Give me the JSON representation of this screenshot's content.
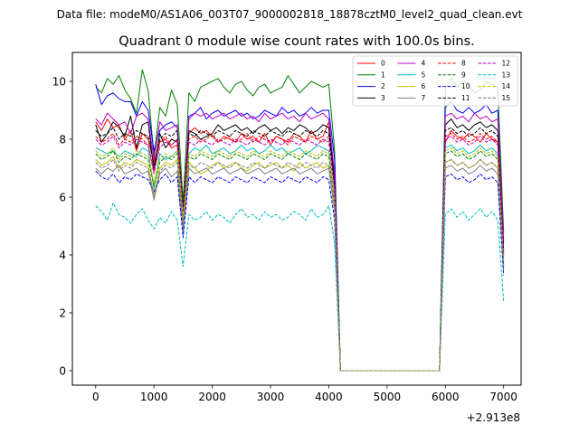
{
  "suptitle": "Data file: modeM0/AS1A06_003T07_9000002818_18878cztM0_level2_quad_clean.evt",
  "chart_data": {
    "type": "line",
    "title": "Quadrant 0 module wise count rates with 100.0s bins.",
    "xlabel": "",
    "ylabel": "",
    "x_offset_label": "+2.913e8",
    "xlim": [
      -400,
      7300
    ],
    "ylim": [
      -0.5,
      11
    ],
    "xticks": [
      0,
      1000,
      2000,
      3000,
      4000,
      5000,
      6000,
      7000
    ],
    "yticks": [
      0,
      2,
      4,
      6,
      8,
      10
    ],
    "grid": false,
    "legend_position": "top-right",
    "legend_columns": 4,
    "x": [
      0,
      100,
      200,
      300,
      400,
      500,
      600,
      700,
      800,
      900,
      1000,
      1100,
      1200,
      1300,
      1400,
      1500,
      1600,
      1700,
      1800,
      1900,
      2000,
      2100,
      2200,
      2300,
      2400,
      2500,
      2600,
      2700,
      2800,
      2900,
      3000,
      3100,
      3200,
      3300,
      3400,
      3500,
      3600,
      3700,
      3800,
      3900,
      4000,
      4100,
      4200,
      4300,
      4400,
      4500,
      4600,
      4700,
      4800,
      4900,
      5000,
      5100,
      5200,
      5300,
      5400,
      5500,
      5600,
      5700,
      5800,
      5900,
      6000,
      6100,
      6200,
      6300,
      6400,
      6500,
      6600,
      6700,
      6800,
      6900,
      7000
    ],
    "series": [
      {
        "name": "0",
        "color": "#ff0000",
        "dash": "solid",
        "values": [
          8.6,
          8.3,
          8.7,
          8.4,
          8.5,
          8.0,
          8.3,
          7.6,
          8.2,
          8.0,
          7.2,
          7.9,
          8.0,
          7.7,
          7.8,
          5.6,
          8.2,
          8.4,
          8.2,
          8.3,
          8.1,
          7.9,
          8.1,
          8.0,
          7.9,
          8.2,
          8.0,
          8.1,
          7.9,
          8.2,
          7.8,
          8.1,
          8.0,
          7.9,
          8.2,
          8.1,
          7.9,
          8.3,
          8.0,
          8.1,
          8.6,
          6.3,
          0,
          0,
          0,
          0,
          0,
          0,
          0,
          0,
          0,
          0,
          0,
          0,
          0,
          0,
          0,
          0,
          0,
          0,
          7.9,
          8.3,
          8.1,
          8.0,
          8.2,
          8.1,
          7.9,
          8.2,
          8.0,
          7.9,
          4.1
        ]
      },
      {
        "name": "1",
        "color": "#008000",
        "dash": "solid",
        "values": [
          9.8,
          9.6,
          10.1,
          9.9,
          10.2,
          9.7,
          9.4,
          8.9,
          10.4,
          9.7,
          7.4,
          9.1,
          8.8,
          9.7,
          9.2,
          5.8,
          9.6,
          9.3,
          9.8,
          9.9,
          10.0,
          10.1,
          9.8,
          9.6,
          9.9,
          10.0,
          9.7,
          9.5,
          9.8,
          9.9,
          9.6,
          9.7,
          9.8,
          10.2,
          9.9,
          9.6,
          9.8,
          10.0,
          9.9,
          9.8,
          9.9,
          7.6,
          0,
          0,
          0,
          0,
          0,
          0,
          0,
          0,
          0,
          0,
          0,
          0,
          0,
          0,
          0,
          0,
          0,
          0,
          9.7,
          10.1,
          9.8,
          10.0,
          9.9,
          9.6,
          9.7,
          10.0,
          9.9,
          9.8,
          4.8
        ]
      },
      {
        "name": "2",
        "color": "#0000ff",
        "dash": "solid",
        "values": [
          9.9,
          9.2,
          9.5,
          9.6,
          9.4,
          9.3,
          9.3,
          8.8,
          9.3,
          9.0,
          7.6,
          8.3,
          8.5,
          8.6,
          8.4,
          4.9,
          8.8,
          8.9,
          9.1,
          8.7,
          8.9,
          9.0,
          8.8,
          8.9,
          9.0,
          8.8,
          8.9,
          8.7,
          8.8,
          9.0,
          8.9,
          8.8,
          9.1,
          8.9,
          9.0,
          8.8,
          8.9,
          9.1,
          8.9,
          9.0,
          9.0,
          7.3,
          0,
          0,
          0,
          0,
          0,
          0,
          0,
          0,
          0,
          0,
          0,
          0,
          0,
          0,
          0,
          0,
          0,
          0,
          9.1,
          9.3,
          9.0,
          8.9,
          9.1,
          8.9,
          9.0,
          9.2,
          8.9,
          9.0,
          4.4
        ]
      },
      {
        "name": "3",
        "color": "#000000",
        "dash": "solid",
        "values": [
          8.5,
          7.9,
          8.2,
          8.6,
          8.4,
          8.1,
          8.8,
          7.7,
          8.5,
          8.6,
          6.9,
          8.2,
          7.7,
          8.0,
          7.9,
          5.5,
          8.3,
          8.2,
          8.0,
          8.1,
          8.2,
          8.5,
          8.3,
          8.4,
          8.5,
          8.3,
          8.4,
          8.2,
          8.4,
          8.5,
          8.3,
          8.4,
          8.2,
          8.4,
          8.3,
          8.5,
          8.4,
          8.2,
          8.3,
          8.5,
          8.4,
          6.6,
          0,
          0,
          0,
          0,
          0,
          0,
          0,
          0,
          0,
          0,
          0,
          0,
          0,
          0,
          0,
          0,
          0,
          0,
          8.5,
          8.7,
          8.4,
          8.5,
          8.3,
          8.5,
          8.6,
          8.4,
          8.5,
          8.3,
          4.2
        ]
      },
      {
        "name": "4",
        "color": "#bf00bf",
        "dash": "solid",
        "values": [
          8.7,
          8.5,
          8.9,
          8.7,
          8.5,
          8.6,
          8.2,
          8.8,
          8.9,
          8.7,
          7.3,
          8.6,
          8.3,
          8.4,
          8.5,
          5.3,
          8.7,
          8.9,
          8.8,
          8.9,
          8.7,
          8.8,
          8.9,
          8.7,
          8.8,
          8.9,
          8.7,
          8.8,
          8.6,
          8.9,
          8.7,
          8.8,
          8.9,
          8.7,
          8.8,
          8.6,
          8.9,
          8.7,
          8.8,
          8.9,
          8.7,
          6.8,
          0,
          0,
          0,
          0,
          0,
          0,
          0,
          0,
          0,
          0,
          0,
          0,
          0,
          0,
          0,
          0,
          0,
          0,
          8.8,
          8.9,
          8.7,
          8.8,
          8.6,
          8.9,
          8.7,
          8.8,
          8.6,
          8.7,
          4.5
        ]
      },
      {
        "name": "5",
        "color": "#00bfbf",
        "dash": "solid",
        "values": [
          7.7,
          7.6,
          7.5,
          7.6,
          7.4,
          7.6,
          7.5,
          7.4,
          7.7,
          7.6,
          6.3,
          7.5,
          7.3,
          7.4,
          7.6,
          5.0,
          7.5,
          7.7,
          7.6,
          7.8,
          7.5,
          7.6,
          7.7,
          7.5,
          7.6,
          7.8,
          7.6,
          7.7,
          7.5,
          7.6,
          7.8,
          7.6,
          7.7,
          7.5,
          7.6,
          7.7,
          7.5,
          7.6,
          7.8,
          7.7,
          7.6,
          5.9,
          0,
          0,
          0,
          0,
          0,
          0,
          0,
          0,
          0,
          0,
          0,
          0,
          0,
          0,
          0,
          0,
          0,
          0,
          7.7,
          7.8,
          7.6,
          7.7,
          7.5,
          7.6,
          7.8,
          7.6,
          7.7,
          7.5,
          3.9
        ]
      },
      {
        "name": "6",
        "color": "#bfbf00",
        "dash": "solid",
        "values": [
          7.3,
          7.1,
          7.2,
          7.4,
          7.0,
          7.2,
          7.1,
          7.3,
          7.2,
          7.1,
          6.1,
          7.0,
          7.2,
          7.1,
          7.3,
          5.1,
          7.2,
          7.0,
          6.8,
          6.9,
          7.1,
          7.2,
          7.0,
          7.1,
          7.2,
          7.0,
          6.9,
          7.1,
          7.2,
          7.0,
          7.1,
          7.2,
          7.0,
          7.1,
          6.9,
          7.2,
          7.0,
          7.1,
          7.2,
          7.0,
          7.1,
          5.6,
          0,
          0,
          0,
          0,
          0,
          0,
          0,
          0,
          0,
          0,
          0,
          0,
          0,
          0,
          0,
          0,
          0,
          0,
          7.2,
          7.3,
          7.1,
          7.2,
          7.0,
          7.1,
          7.3,
          7.1,
          7.2,
          7.0,
          3.6
        ]
      },
      {
        "name": "7",
        "color": "#808080",
        "dash": "solid",
        "values": [
          7.0,
          6.8,
          7.0,
          6.9,
          7.1,
          6.8,
          6.9,
          7.0,
          6.8,
          6.9,
          5.9,
          6.8,
          7.0,
          6.7,
          6.9,
          4.8,
          7.0,
          6.8,
          6.9,
          7.0,
          6.8,
          6.9,
          7.0,
          6.8,
          6.9,
          7.0,
          6.8,
          6.9,
          7.0,
          6.8,
          6.9,
          7.0,
          6.8,
          6.9,
          7.0,
          6.8,
          6.9,
          7.0,
          6.8,
          6.9,
          7.0,
          5.5,
          0,
          0,
          0,
          0,
          0,
          0,
          0,
          0,
          0,
          0,
          0,
          0,
          0,
          0,
          0,
          0,
          0,
          0,
          7.0,
          7.1,
          6.9,
          7.0,
          6.8,
          6.9,
          7.1,
          6.9,
          7.0,
          6.8,
          3.5
        ]
      },
      {
        "name": "8",
        "color": "#ff0000",
        "dash": "dashed",
        "values": [
          8.1,
          7.9,
          8.0,
          8.2,
          7.8,
          8.0,
          7.9,
          8.1,
          8.0,
          7.8,
          6.8,
          7.9,
          8.1,
          7.8,
          8.0,
          5.4,
          8.0,
          8.1,
          7.9,
          8.0,
          8.2,
          7.9,
          8.0,
          8.1,
          7.9,
          8.0,
          8.2,
          7.9,
          8.1,
          8.0,
          7.9,
          8.1,
          8.0,
          7.8,
          8.1,
          8.0,
          7.9,
          8.1,
          8.0,
          7.9,
          8.1,
          6.3,
          0,
          0,
          0,
          0,
          0,
          0,
          0,
          0,
          0,
          0,
          0,
          0,
          0,
          0,
          0,
          0,
          0,
          0,
          8.1,
          8.2,
          8.0,
          8.1,
          7.9,
          8.0,
          8.2,
          8.0,
          8.1,
          7.9,
          4.0
        ]
      },
      {
        "name": "9",
        "color": "#008000",
        "dash": "dashed",
        "values": [
          7.5,
          7.3,
          7.4,
          7.6,
          7.2,
          7.4,
          7.3,
          7.5,
          7.4,
          7.3,
          6.4,
          7.2,
          7.4,
          7.3,
          7.5,
          5.2,
          7.4,
          7.3,
          7.5,
          7.4,
          7.3,
          7.5,
          7.4,
          7.3,
          7.5,
          7.4,
          7.3,
          7.5,
          7.4,
          7.3,
          7.5,
          7.4,
          7.3,
          7.5,
          7.4,
          7.3,
          7.5,
          7.4,
          7.3,
          7.5,
          7.4,
          5.8,
          0,
          0,
          0,
          0,
          0,
          0,
          0,
          0,
          0,
          0,
          0,
          0,
          0,
          0,
          0,
          0,
          0,
          0,
          7.5,
          7.6,
          7.4,
          7.5,
          7.3,
          7.4,
          7.6,
          7.4,
          7.5,
          7.3,
          3.7
        ]
      },
      {
        "name": "10",
        "color": "#0000ff",
        "dash": "dashed",
        "values": [
          6.9,
          6.7,
          6.6,
          6.8,
          6.5,
          6.7,
          6.6,
          6.8,
          6.7,
          6.6,
          6.2,
          6.6,
          6.8,
          6.5,
          6.7,
          4.6,
          6.7,
          6.5,
          6.7,
          6.6,
          6.5,
          6.7,
          6.6,
          6.5,
          6.7,
          6.6,
          6.5,
          6.7,
          6.6,
          6.5,
          6.7,
          6.6,
          6.5,
          6.7,
          6.6,
          6.5,
          6.7,
          6.6,
          6.5,
          6.7,
          6.6,
          5.2,
          0,
          0,
          0,
          0,
          0,
          0,
          0,
          0,
          0,
          0,
          0,
          0,
          0,
          0,
          0,
          0,
          0,
          0,
          6.7,
          6.8,
          6.6,
          6.7,
          6.5,
          6.6,
          6.8,
          6.6,
          6.7,
          6.5,
          3.3
        ]
      },
      {
        "name": "11",
        "color": "#000000",
        "dash": "dashed",
        "values": [
          8.3,
          8.1,
          8.2,
          8.4,
          8.0,
          8.2,
          8.1,
          8.3,
          8.2,
          8.1,
          7.1,
          8.0,
          8.2,
          8.1,
          8.3,
          5.6,
          8.2,
          8.1,
          8.3,
          8.2,
          8.1,
          8.3,
          8.2,
          8.1,
          8.3,
          8.2,
          8.1,
          8.3,
          8.2,
          8.1,
          8.3,
          8.2,
          8.1,
          8.3,
          8.2,
          8.1,
          8.3,
          8.2,
          8.1,
          8.3,
          8.2,
          6.4,
          0,
          0,
          0,
          0,
          0,
          0,
          0,
          0,
          0,
          0,
          0,
          0,
          0,
          0,
          0,
          0,
          0,
          0,
          8.3,
          8.4,
          8.2,
          8.3,
          8.1,
          8.2,
          8.4,
          8.2,
          8.3,
          8.1,
          4.1
        ]
      },
      {
        "name": "12",
        "color": "#bf00bf",
        "dash": "dashed",
        "values": [
          8.0,
          7.8,
          7.9,
          8.1,
          7.7,
          7.9,
          7.8,
          8.0,
          7.9,
          7.8,
          6.9,
          7.7,
          7.9,
          7.8,
          8.0,
          5.4,
          7.9,
          7.8,
          8.0,
          7.9,
          7.8,
          8.0,
          7.9,
          7.8,
          8.0,
          7.9,
          7.8,
          8.0,
          7.9,
          7.8,
          8.0,
          7.9,
          7.8,
          8.0,
          7.9,
          7.8,
          8.0,
          7.9,
          7.8,
          8.0,
          7.9,
          6.2,
          0,
          0,
          0,
          0,
          0,
          0,
          0,
          0,
          0,
          0,
          0,
          0,
          0,
          0,
          0,
          0,
          0,
          0,
          8.0,
          8.1,
          7.9,
          8.0,
          7.8,
          7.9,
          8.1,
          7.9,
          8.0,
          7.8,
          4.0
        ]
      },
      {
        "name": "13",
        "color": "#00bfbf",
        "dash": "dashed",
        "values": [
          5.7,
          5.5,
          5.2,
          5.8,
          5.4,
          5.3,
          5.1,
          5.4,
          5.6,
          5.2,
          4.9,
          5.3,
          5.1,
          5.5,
          5.2,
          3.6,
          5.4,
          5.2,
          5.3,
          5.5,
          5.2,
          5.4,
          5.3,
          5.1,
          5.4,
          5.6,
          5.3,
          5.4,
          5.2,
          5.5,
          5.3,
          5.4,
          5.2,
          5.3,
          5.5,
          5.4,
          5.2,
          5.6,
          5.3,
          5.4,
          5.7,
          4.4,
          0,
          0,
          0,
          0,
          0,
          0,
          0,
          0,
          0,
          0,
          0,
          0,
          0,
          0,
          0,
          0,
          0,
          0,
          5.4,
          5.6,
          5.3,
          5.5,
          5.2,
          5.4,
          5.6,
          5.3,
          5.5,
          5.2,
          2.4
        ]
      },
      {
        "name": "14",
        "color": "#bfbf00",
        "dash": "dashed",
        "values": [
          7.6,
          7.4,
          7.5,
          7.7,
          7.3,
          7.5,
          7.4,
          7.6,
          7.5,
          7.4,
          6.5,
          7.3,
          7.5,
          7.4,
          7.6,
          5.3,
          7.5,
          7.4,
          7.6,
          7.5,
          7.4,
          7.6,
          7.5,
          7.4,
          7.6,
          7.5,
          7.4,
          7.6,
          7.5,
          7.4,
          7.6,
          7.5,
          7.4,
          7.6,
          7.5,
          7.4,
          7.6,
          7.5,
          7.4,
          7.6,
          7.5,
          5.9,
          0,
          0,
          0,
          0,
          0,
          0,
          0,
          0,
          0,
          0,
          0,
          0,
          0,
          0,
          0,
          0,
          0,
          0,
          7.6,
          7.7,
          7.5,
          7.6,
          7.4,
          7.5,
          7.7,
          7.5,
          7.6,
          7.4,
          3.8
        ]
      },
      {
        "name": "15",
        "color": "#808080",
        "dash": "dashed",
        "values": [
          7.2,
          7.0,
          7.1,
          7.3,
          6.9,
          7.1,
          7.0,
          7.2,
          7.1,
          7.0,
          6.0,
          6.9,
          7.1,
          7.0,
          7.2,
          5.0,
          7.1,
          7.0,
          7.2,
          7.1,
          7.0,
          7.2,
          7.1,
          7.0,
          7.2,
          7.1,
          7.0,
          7.2,
          7.1,
          7.0,
          7.2,
          7.1,
          7.0,
          7.2,
          7.1,
          7.0,
          7.2,
          7.1,
          7.0,
          7.2,
          7.1,
          5.6,
          0,
          0,
          0,
          0,
          0,
          0,
          0,
          0,
          0,
          0,
          0,
          0,
          0,
          0,
          0,
          0,
          0,
          0,
          7.2,
          7.3,
          7.1,
          7.2,
          7.0,
          7.1,
          7.3,
          7.1,
          7.2,
          7.0,
          3.6
        ]
      }
    ]
  }
}
